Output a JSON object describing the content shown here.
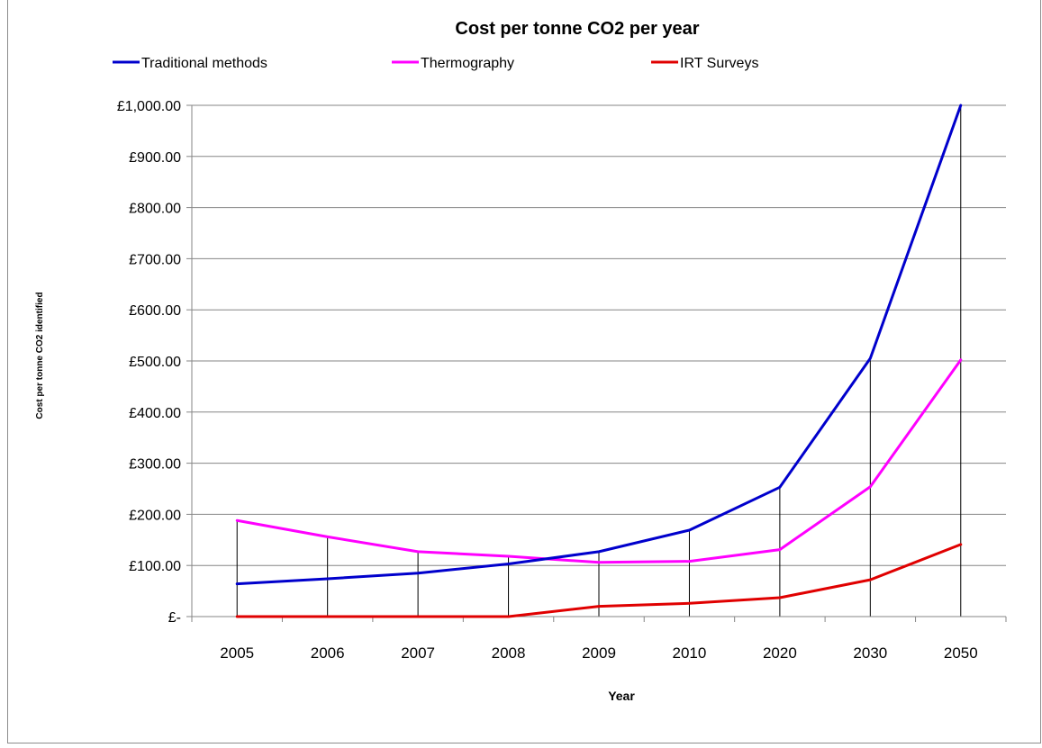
{
  "chart_data": {
    "type": "line",
    "title": "Cost per tonne CO2 per year",
    "xlabel": "Year",
    "ylabel": "Cost per tonne CO2 identified",
    "categories": [
      "2005",
      "2006",
      "2007",
      "2008",
      "2009",
      "2010",
      "2020",
      "2030",
      "2050"
    ],
    "ylim": [
      0,
      1000
    ],
    "yticks": [
      0,
      100,
      200,
      300,
      400,
      500,
      600,
      700,
      800,
      900,
      1000
    ],
    "ytick_labels": [
      "£-",
      "£100.00",
      "£200.00",
      "£300.00",
      "£400.00",
      "£500.00",
      "£600.00",
      "£700.00",
      "£800.00",
      "£900.00",
      "£1,000.00"
    ],
    "grid": "horizontal",
    "drop_lines": true,
    "legend_position": "top",
    "series": [
      {
        "name": "Traditional methods",
        "color": "#0000cc",
        "values": [
          64,
          74,
          85,
          103,
          127,
          169,
          253,
          505,
          1000
        ]
      },
      {
        "name": "Thermography",
        "color": "#ff00ff",
        "values": [
          188,
          156,
          127,
          118,
          106,
          108,
          131,
          254,
          502
        ]
      },
      {
        "name": "IRT Surveys",
        "color": "#e00000",
        "values": [
          0,
          0,
          0,
          0,
          20,
          26,
          37,
          72,
          141
        ]
      }
    ]
  }
}
